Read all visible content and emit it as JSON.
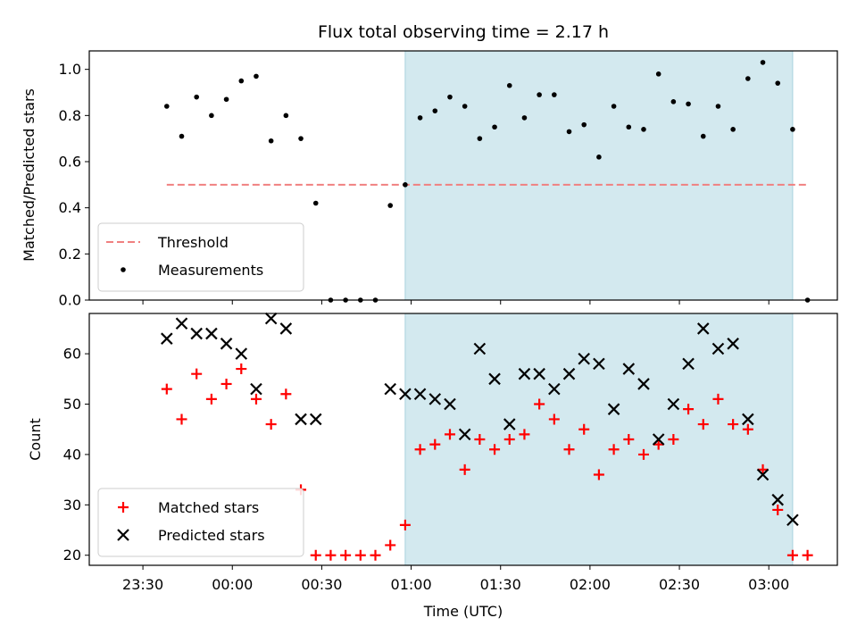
{
  "chart_data": [
    {
      "type": "scatter",
      "title": "Flux total observing time = 2.17 h",
      "xlabel": "",
      "ylabel": "Matched/Predicted stars",
      "ylim": [
        0,
        1.08
      ],
      "yticks": [
        "0.0",
        "0.2",
        "0.4",
        "0.6",
        "0.8",
        "1.0"
      ],
      "shaded_region": {
        "start": "00:58",
        "end": "03:08",
        "color": "#d3e9ef"
      },
      "threshold": {
        "name": "Threshold",
        "value": 0.5,
        "color": "#f08080",
        "style": "dashed"
      },
      "legend": {
        "position": "lower-left",
        "entries": [
          "Threshold",
          "Measurements"
        ]
      },
      "series": [
        {
          "name": "Measurements",
          "marker": "dot",
          "color": "#000000",
          "x": [
            "23:38",
            "23:43",
            "23:48",
            "23:53",
            "23:58",
            "00:03",
            "00:08",
            "00:13",
            "00:18",
            "00:23",
            "00:28",
            "00:33",
            "00:38",
            "00:43",
            "00:48",
            "00:53",
            "00:58",
            "01:03",
            "01:08",
            "01:13",
            "01:18",
            "01:23",
            "01:28",
            "01:33",
            "01:38",
            "01:43",
            "01:48",
            "01:53",
            "01:58",
            "02:03",
            "02:08",
            "02:13",
            "02:18",
            "02:23",
            "02:28",
            "02:33",
            "02:38",
            "02:43",
            "02:48",
            "02:53",
            "02:58",
            "03:03",
            "03:08",
            "03:13"
          ],
          "y": [
            0.84,
            0.71,
            0.88,
            0.8,
            0.87,
            0.95,
            0.97,
            0.69,
            0.8,
            0.7,
            0.42,
            0.0,
            0.0,
            0.0,
            0.0,
            0.41,
            0.5,
            0.79,
            0.82,
            0.88,
            0.84,
            0.7,
            0.75,
            0.93,
            0.79,
            0.89,
            0.89,
            0.73,
            0.76,
            0.62,
            0.84,
            0.75,
            0.74,
            0.98,
            0.86,
            0.85,
            0.71,
            0.84,
            0.74,
            0.96,
            1.03,
            0.94,
            0.74,
            0.0
          ]
        }
      ]
    },
    {
      "type": "scatter",
      "title": "",
      "xlabel": "Time (UTC)",
      "ylabel": "Count",
      "ylim": [
        18,
        68
      ],
      "yticks": [
        "20",
        "30",
        "40",
        "50",
        "60"
      ],
      "xticks": [
        "23:30",
        "00:00",
        "00:30",
        "01:00",
        "01:30",
        "02:00",
        "02:30",
        "03:00"
      ],
      "shaded_region": {
        "start": "00:58",
        "end": "03:08",
        "color": "#d3e9ef"
      },
      "legend": {
        "position": "lower-left",
        "entries": [
          "Matched stars",
          "Predicted stars"
        ]
      },
      "series": [
        {
          "name": "Matched stars",
          "marker": "plus",
          "color": "#ff0000",
          "x": [
            "23:38",
            "23:43",
            "23:48",
            "23:53",
            "23:58",
            "00:03",
            "00:08",
            "00:13",
            "00:18",
            "00:23",
            "00:28",
            "00:33",
            "00:38",
            "00:43",
            "00:48",
            "00:53",
            "00:58",
            "01:03",
            "01:08",
            "01:13",
            "01:18",
            "01:23",
            "01:28",
            "01:33",
            "01:38",
            "01:43",
            "01:48",
            "01:53",
            "01:58",
            "02:03",
            "02:08",
            "02:13",
            "02:18",
            "02:23",
            "02:28",
            "02:33",
            "02:38",
            "02:43",
            "02:48",
            "02:53",
            "02:58",
            "03:03",
            "03:08",
            "03:13"
          ],
          "y": [
            53,
            47,
            56,
            51,
            54,
            57,
            51,
            46,
            52,
            33,
            20,
            20,
            20,
            20,
            20,
            22,
            26,
            41,
            42,
            44,
            37,
            43,
            41,
            43,
            44,
            50,
            47,
            41,
            45,
            36,
            41,
            43,
            40,
            42,
            43,
            49,
            46,
            51,
            46,
            45,
            37,
            29,
            20,
            20
          ]
        },
        {
          "name": "Predicted stars",
          "marker": "x",
          "color": "#000000",
          "x": [
            "23:38",
            "23:43",
            "23:48",
            "23:53",
            "23:58",
            "00:03",
            "00:08",
            "00:13",
            "00:18",
            "00:23",
            "00:28",
            "00:53",
            "00:58",
            "01:03",
            "01:08",
            "01:13",
            "01:18",
            "01:23",
            "01:28",
            "01:33",
            "01:38",
            "01:43",
            "01:48",
            "01:53",
            "01:58",
            "02:03",
            "02:08",
            "02:13",
            "02:18",
            "02:23",
            "02:28",
            "02:33",
            "02:38",
            "02:43",
            "02:48",
            "02:53",
            "02:58",
            "03:03",
            "03:08"
          ],
          "y": [
            63,
            66,
            64,
            64,
            62,
            60,
            53,
            67,
            65,
            47,
            47,
            53,
            52,
            52,
            51,
            50,
            44,
            61,
            55,
            46,
            56,
            56,
            53,
            56,
            59,
            58,
            49,
            57,
            54,
            43,
            50,
            58,
            65,
            61,
            62,
            47,
            36,
            31,
            27
          ]
        }
      ]
    }
  ]
}
